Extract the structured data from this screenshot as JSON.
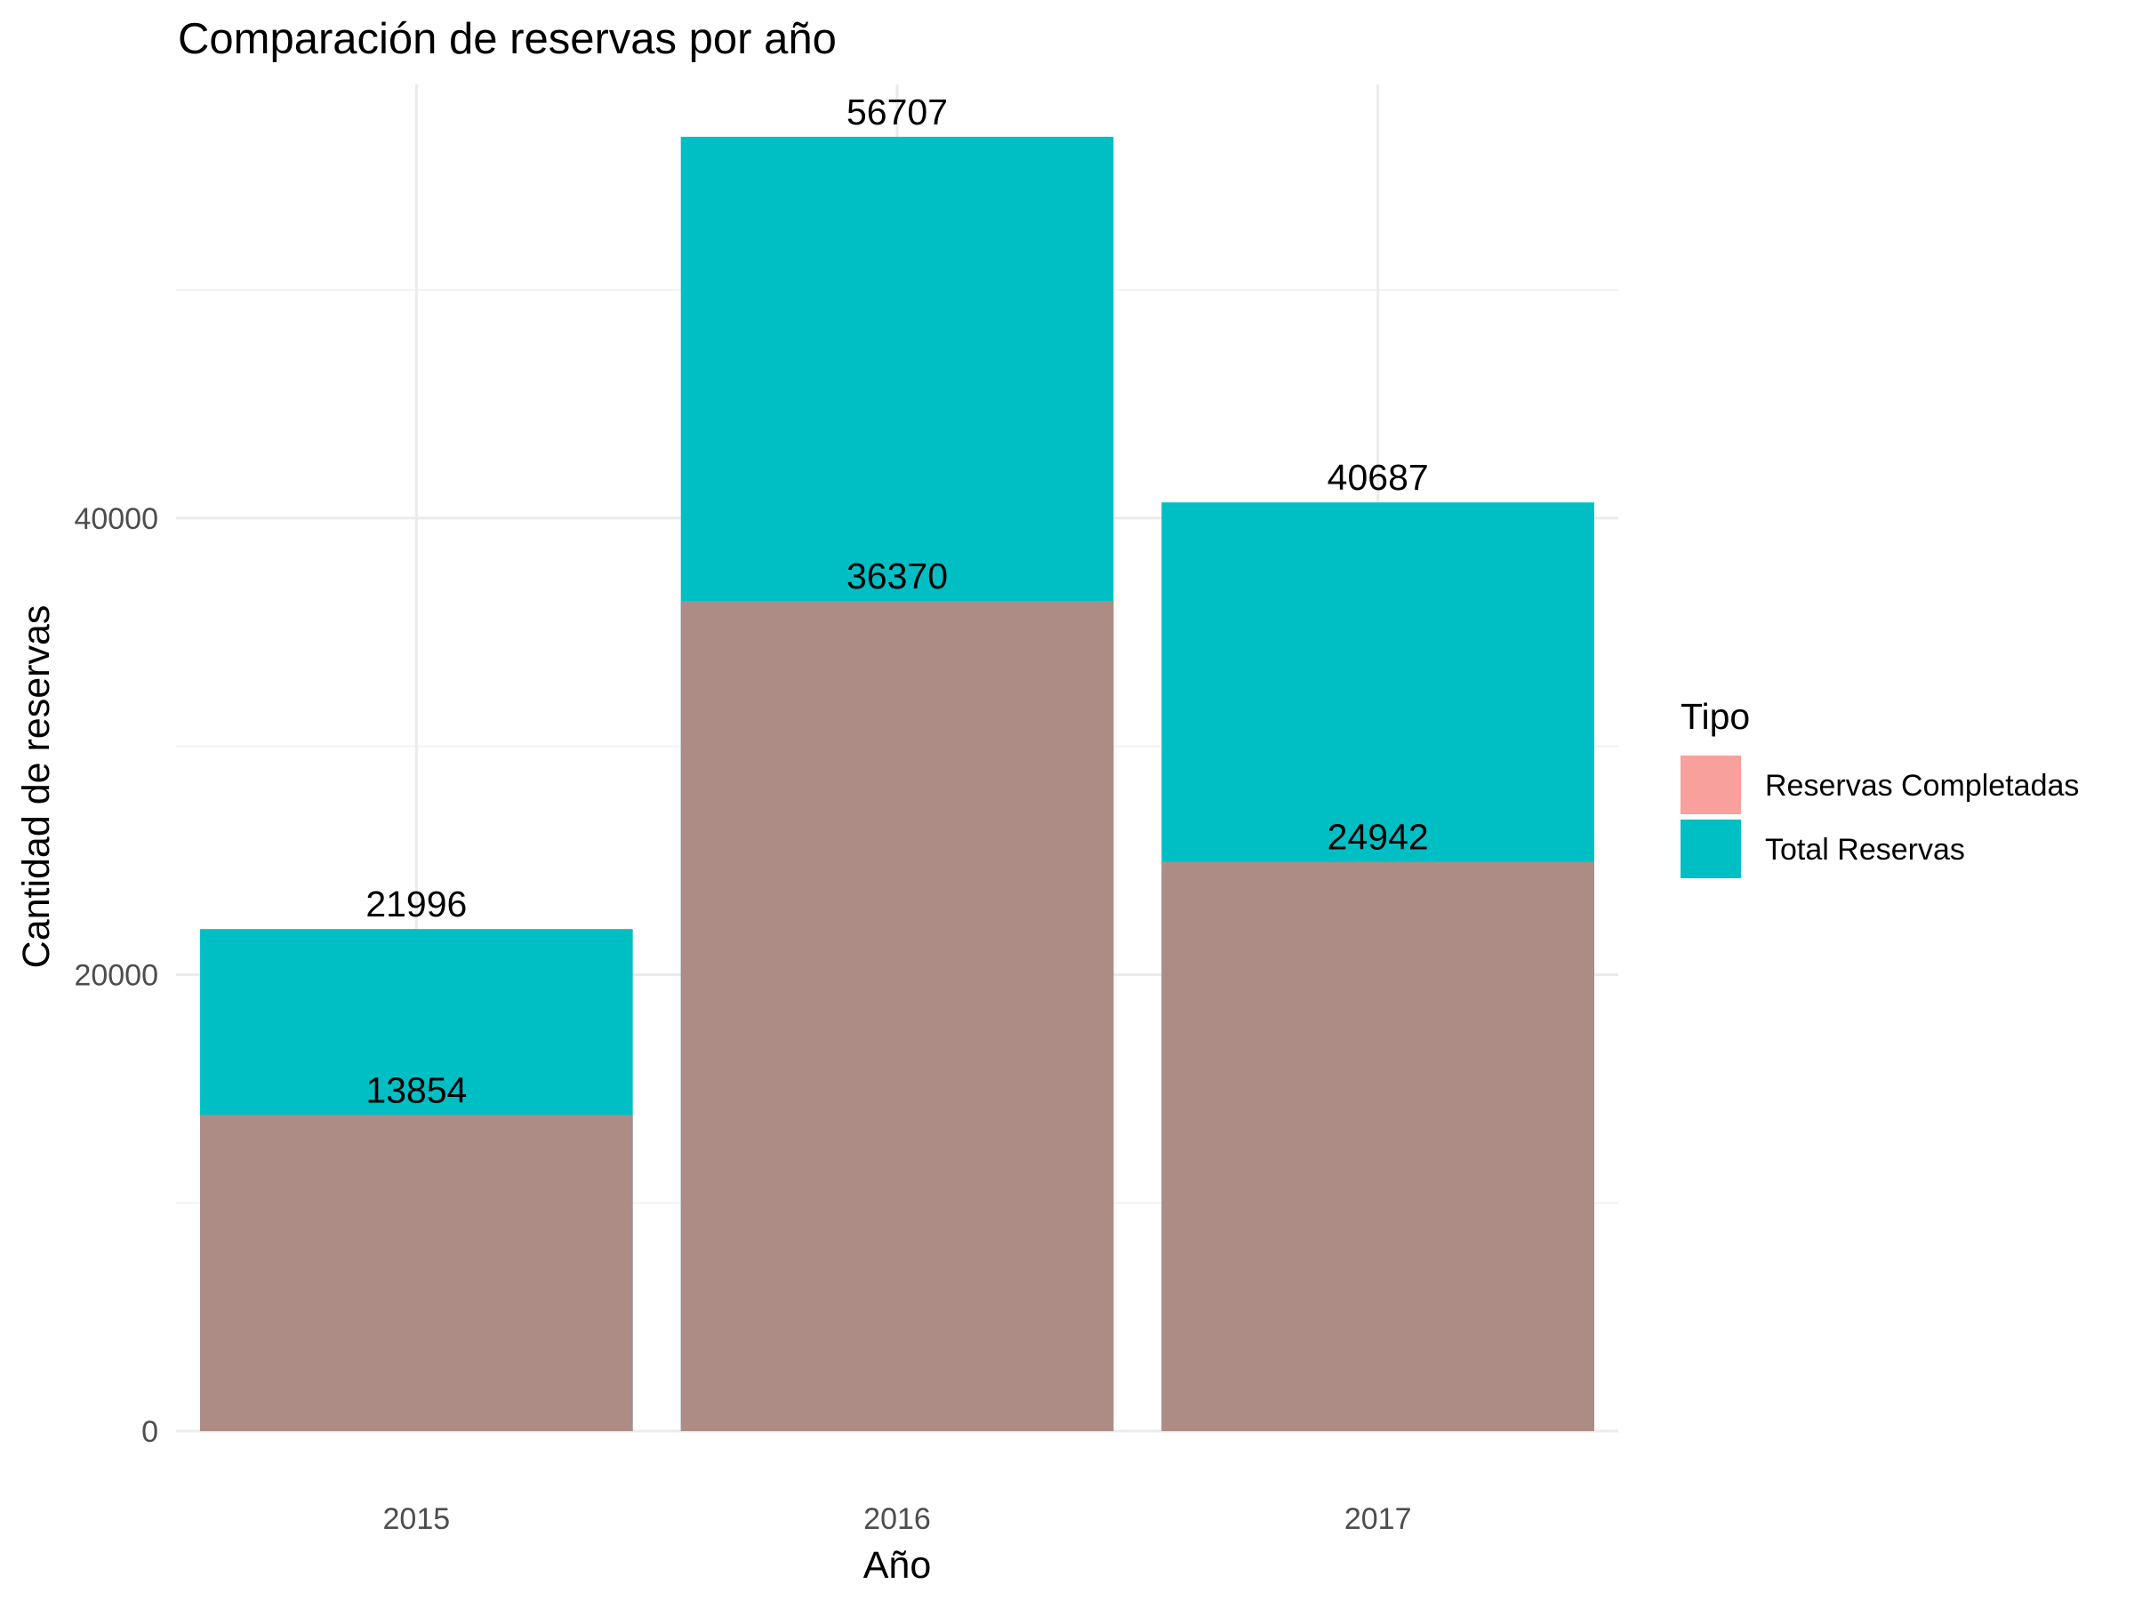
{
  "chart_data": {
    "type": "bar",
    "title": "Comparación de reservas por año",
    "xlabel": "Año",
    "ylabel": "Cantidad de reservas",
    "categories": [
      "2015",
      "2016",
      "2017"
    ],
    "series": [
      {
        "name": "Total Reservas",
        "values": [
          21996,
          56707,
          40687
        ],
        "color": "#00BFC4"
      },
      {
        "name": "Reservas Completadas",
        "values": [
          13854,
          36370,
          24942
        ],
        "color": "#AD8C86"
      }
    ],
    "y_ticks": [
      0,
      20000,
      40000
    ],
    "y_tick_labels": [
      "0",
      "20000",
      "40000"
    ],
    "ylim": [
      0,
      59000
    ],
    "grid": true,
    "legend": {
      "title": "Tipo",
      "position": "right",
      "entries": [
        {
          "label": "Reservas Completadas",
          "color": "#F8A09C"
        },
        {
          "label": "Total Reservas",
          "color": "#00BFC4"
        }
      ]
    }
  }
}
